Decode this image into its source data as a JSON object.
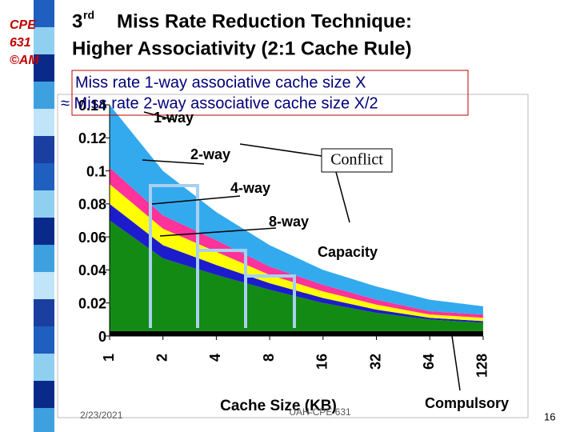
{
  "logo": [
    "CPE",
    "631",
    "©AM"
  ],
  "title": {
    "number": "3",
    "suffix": "rd",
    "line1": "Miss Rate Reduction Technique:",
    "line2": "Higher Associativity (2:1 Cache Rule)"
  },
  "subtitle": [
    "Miss rate 1-way associative cache size X",
    "≈ Miss rate 2-way associative cache size X/2"
  ],
  "conflict": "Conflict",
  "footer": {
    "date": "2/23/2021",
    "course": "UAH-CPE 631",
    "page": "16"
  },
  "chart_data": {
    "type": "stacked-area",
    "xlabel": "Cache Size (KB)",
    "categories": [
      "1",
      "2",
      "4",
      "8",
      "16",
      "32",
      "64",
      "128"
    ],
    "ylim": [
      0,
      0.14
    ],
    "yticks": [
      0,
      0.02,
      0.04,
      0.06,
      0.08,
      0.1,
      0.12,
      0.14
    ],
    "series": [
      {
        "name": "Compulsory",
        "color": "#000000",
        "values": [
          0.003,
          0.003,
          0.003,
          0.003,
          0.003,
          0.003,
          0.003,
          0.003
        ]
      },
      {
        "name": "Capacity",
        "color": "#138a13",
        "values": [
          0.067,
          0.044,
          0.034,
          0.025,
          0.017,
          0.011,
          0.007,
          0.005
        ]
      },
      {
        "name": "8-way",
        "color": "#1c1ccc",
        "values": [
          0.01,
          0.008,
          0.006,
          0.004,
          0.003,
          0.002,
          0.001,
          0.001
        ]
      },
      {
        "name": "4-way",
        "color": "#ffff00",
        "values": [
          0.012,
          0.01,
          0.008,
          0.005,
          0.004,
          0.003,
          0.002,
          0.002
        ]
      },
      {
        "name": "2-way",
        "color": "#ff3399",
        "values": [
          0.01,
          0.008,
          0.007,
          0.005,
          0.004,
          0.003,
          0.002,
          0.002
        ]
      },
      {
        "name": "1-way",
        "color": "#33aaee",
        "values": [
          0.038,
          0.027,
          0.017,
          0.013,
          0.009,
          0.008,
          0.007,
          0.005
        ]
      }
    ]
  }
}
